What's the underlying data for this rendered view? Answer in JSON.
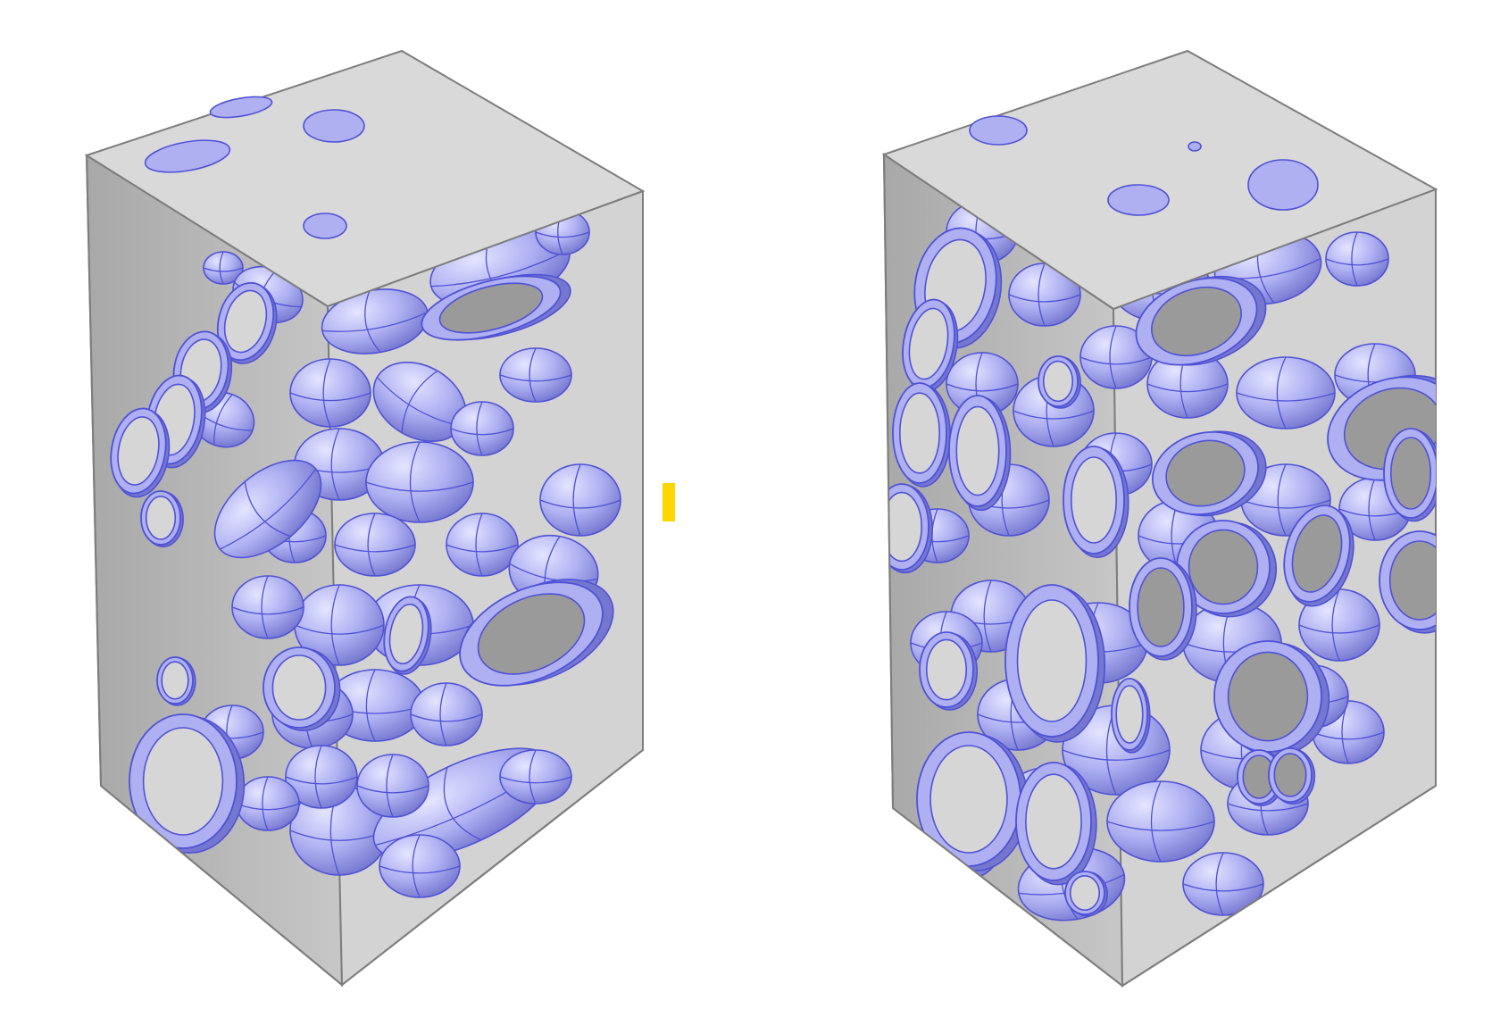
{
  "colors": {
    "background": "#ffffff",
    "box_front": "#d3d3d3",
    "box_side": "#b4b4b4",
    "box_top": "#d9d9d9",
    "box_edge": "#7d7d7d",
    "particle_fill": "#aeb0f2",
    "particle_light": "#e4e5ff",
    "particle_dark": "#7577cf",
    "particle_line": "#4e52d6",
    "cut_inner_light": "#d6d6d6",
    "cut_inner_dark": "#9a9a9a",
    "marker": "#ffd600"
  },
  "figure": {
    "panels": [
      {
        "name": "left-specimen",
        "description_icon": "cube-specimen-icon"
      },
      {
        "name": "right-specimen",
        "description_icon": "cube-specimen-icon"
      }
    ],
    "marker_icon": "yellow-bar-icon"
  }
}
